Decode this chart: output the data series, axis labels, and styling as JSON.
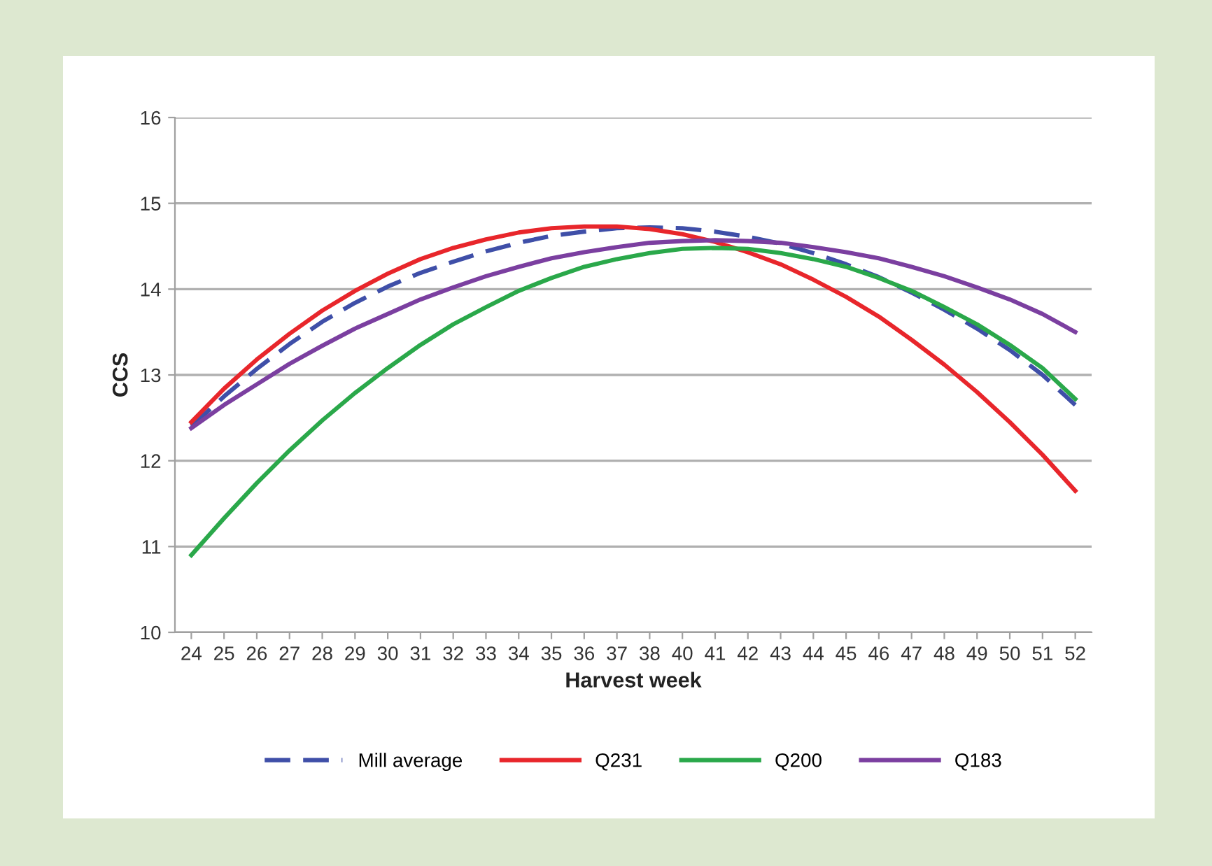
{
  "chart_data": {
    "type": "line",
    "xlabel": "Harvest week",
    "ylabel": "CCS",
    "categories": [
      "24",
      "25",
      "26",
      "27",
      "28",
      "29",
      "30",
      "31",
      "32",
      "33",
      "34",
      "35",
      "36",
      "37",
      "38",
      "40",
      "41",
      "42",
      "43",
      "44",
      "45",
      "46",
      "47",
      "48",
      "49",
      "50",
      "51",
      "52"
    ],
    "ylim": [
      10,
      16
    ],
    "yticks": [
      10,
      11,
      12,
      13,
      14,
      15,
      16
    ],
    "grid": "y",
    "legend": "bottom",
    "marker": "none",
    "series": [
      {
        "name": "Mill average",
        "color": "#3f4fa8",
        "line_style": "dashed",
        "values": [
          12.4,
          12.75,
          13.07,
          13.36,
          13.62,
          13.84,
          14.03,
          14.19,
          14.32,
          14.44,
          14.54,
          14.62,
          14.67,
          14.71,
          14.72,
          14.71,
          14.67,
          14.61,
          14.53,
          14.42,
          14.29,
          14.14,
          13.96,
          13.76,
          13.54,
          13.29,
          13.0,
          12.65
        ]
      },
      {
        "name": "Q231",
        "color": "#e8262b",
        "line_style": "solid",
        "values": [
          12.45,
          12.84,
          13.18,
          13.48,
          13.75,
          13.98,
          14.18,
          14.35,
          14.48,
          14.58,
          14.66,
          14.71,
          14.73,
          14.73,
          14.7,
          14.64,
          14.55,
          14.43,
          14.29,
          14.11,
          13.91,
          13.68,
          13.41,
          13.12,
          12.8,
          12.45,
          12.07,
          11.65
        ]
      },
      {
        "name": "Q200",
        "color": "#2aa84a",
        "line_style": "solid",
        "values": [
          10.9,
          11.33,
          11.74,
          12.12,
          12.47,
          12.79,
          13.08,
          13.35,
          13.59,
          13.79,
          13.98,
          14.13,
          14.26,
          14.35,
          14.42,
          14.47,
          14.48,
          14.47,
          14.42,
          14.35,
          14.26,
          14.13,
          13.98,
          13.79,
          13.59,
          13.35,
          13.08,
          12.72
        ]
      },
      {
        "name": "Q183",
        "color": "#7b3fa0",
        "line_style": "solid",
        "values": [
          12.38,
          12.65,
          12.89,
          13.13,
          13.34,
          13.54,
          13.71,
          13.88,
          14.02,
          14.15,
          14.26,
          14.36,
          14.43,
          14.49,
          14.54,
          14.56,
          14.57,
          14.56,
          14.54,
          14.49,
          14.43,
          14.36,
          14.26,
          14.15,
          14.02,
          13.88,
          13.71,
          13.5
        ]
      }
    ]
  }
}
